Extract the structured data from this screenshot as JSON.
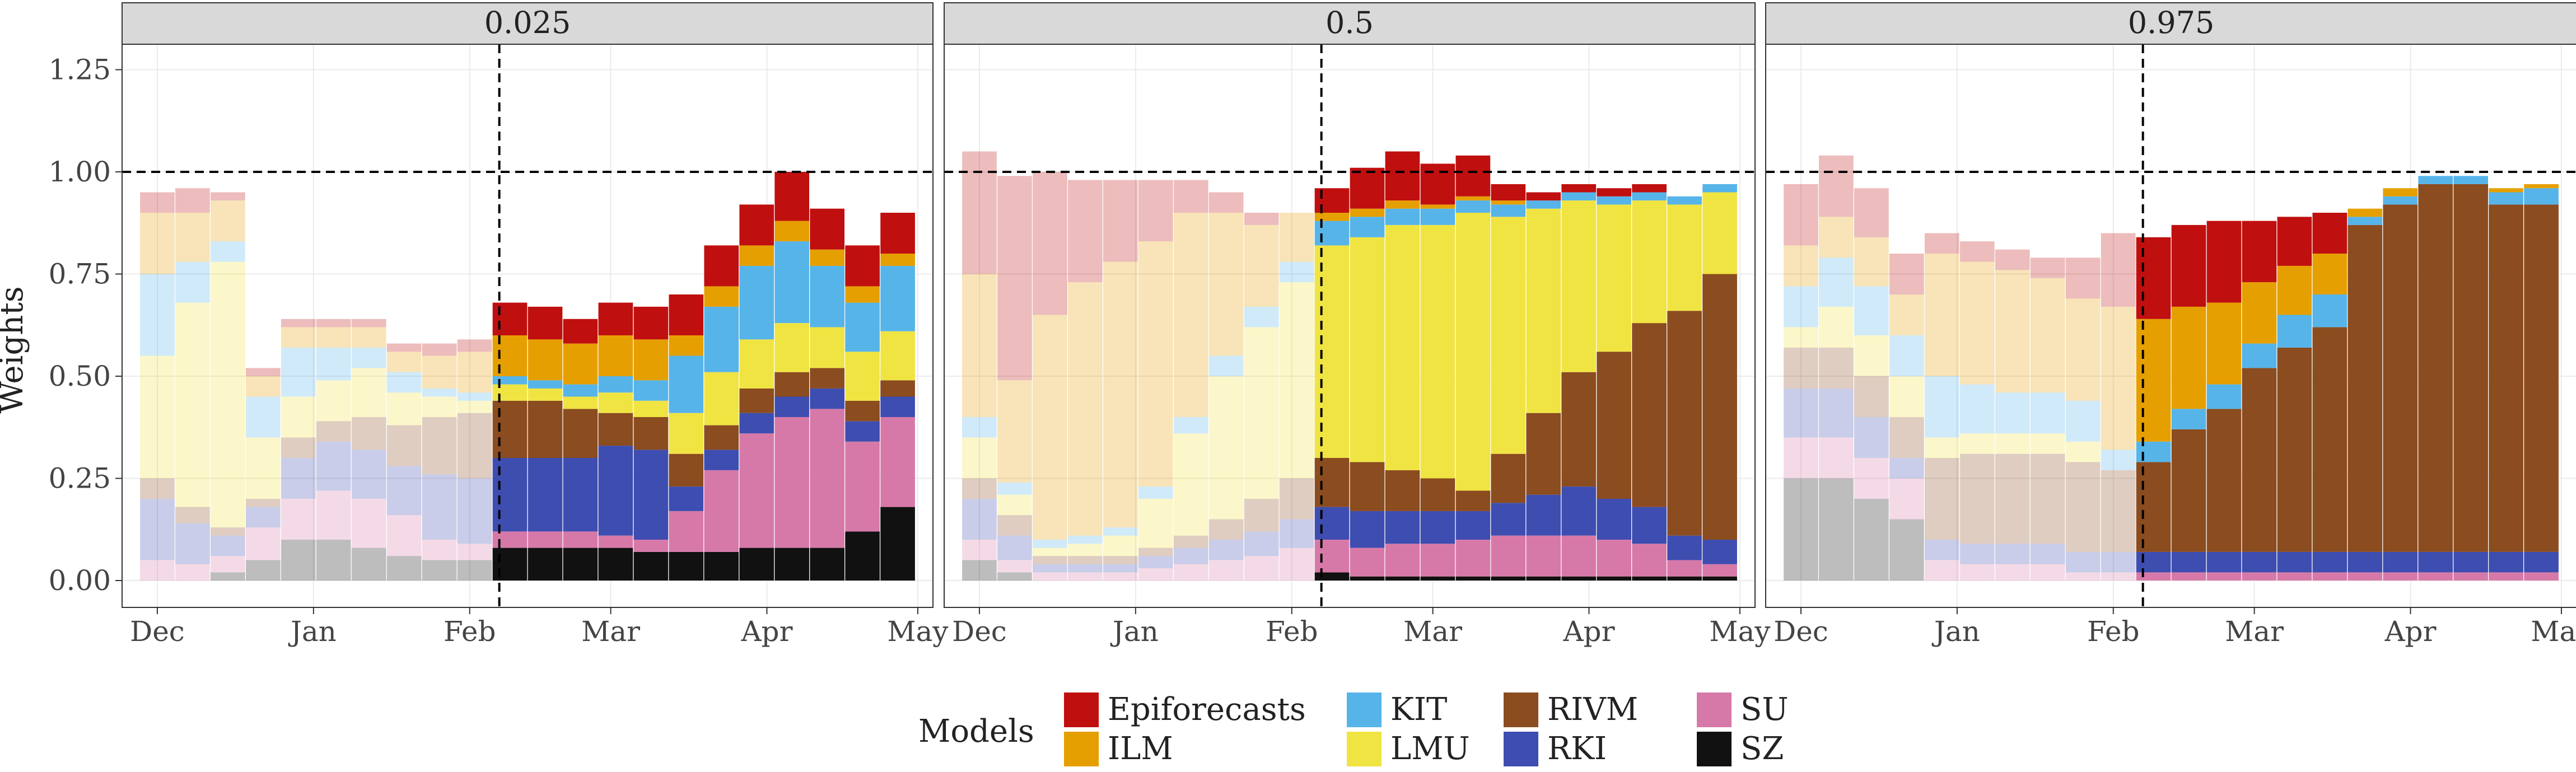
{
  "chart_data": {
    "type": "bar",
    "stacked": true,
    "ylabel": "Weights",
    "xlabel": "",
    "ylim": [
      0,
      1.3
    ],
    "y_ticks": [
      "0.00",
      "0.25",
      "0.50",
      "0.75",
      "1.00",
      "1.25"
    ],
    "x_ticks": [
      "Dec",
      "Jan",
      "Feb",
      "Mar",
      "Apr",
      "May"
    ],
    "x_domain_weeks": [
      -1,
      22
    ],
    "x_tick_positions_weeks": [
      0,
      4.43,
      8.86,
      12.86,
      17.29,
      21.57
    ],
    "grid": true,
    "reference_line_y": 1.0,
    "legend": {
      "title": "Models",
      "placement": "bottom",
      "entries": [
        "Epiforecasts",
        "ILM",
        "KIT",
        "LMU",
        "RIVM",
        "RKI",
        "SU",
        "SZ"
      ]
    },
    "colors": {
      "Epiforecasts": "#c00f0f",
      "ILM": "#e69f00",
      "KIT": "#56b4e9",
      "LMU": "#f0e442",
      "RIVM": "#8b4c1f",
      "RKI": "#3e4db0",
      "SU": "#d779a8",
      "SZ": "#111111"
    },
    "panels": [
      {
        "title": "0.025",
        "evaluation_start_week": 9.7,
        "series_weeks": [
          0,
          1,
          2,
          3,
          4,
          5,
          6,
          7,
          8,
          9,
          10,
          11,
          12,
          13,
          14,
          15,
          16,
          17,
          18,
          19,
          20,
          21
        ],
        "series": [
          {
            "name": "SZ",
            "values": [
              0.0,
              0.0,
              0.02,
              0.05,
              0.1,
              0.1,
              0.08,
              0.06,
              0.05,
              0.05,
              0.08,
              0.08,
              0.08,
              0.08,
              0.07,
              0.07,
              0.07,
              0.08,
              0.08,
              0.08,
              0.12,
              0.18
            ]
          },
          {
            "name": "SU",
            "values": [
              0.05,
              0.04,
              0.04,
              0.08,
              0.1,
              0.12,
              0.12,
              0.1,
              0.05,
              0.04,
              0.04,
              0.04,
              0.04,
              0.03,
              0.03,
              0.1,
              0.2,
              0.28,
              0.32,
              0.34,
              0.22,
              0.22
            ]
          },
          {
            "name": "RKI",
            "values": [
              0.15,
              0.1,
              0.05,
              0.05,
              0.1,
              0.12,
              0.12,
              0.12,
              0.16,
              0.16,
              0.18,
              0.18,
              0.18,
              0.22,
              0.22,
              0.06,
              0.05,
              0.05,
              0.05,
              0.05,
              0.05,
              0.05
            ]
          },
          {
            "name": "RIVM",
            "values": [
              0.05,
              0.04,
              0.02,
              0.02,
              0.05,
              0.05,
              0.08,
              0.1,
              0.14,
              0.16,
              0.14,
              0.14,
              0.12,
              0.08,
              0.08,
              0.08,
              0.06,
              0.06,
              0.06,
              0.05,
              0.05,
              0.04
            ]
          },
          {
            "name": "LMU",
            "values": [
              0.3,
              0.5,
              0.65,
              0.15,
              0.1,
              0.1,
              0.12,
              0.08,
              0.05,
              0.03,
              0.04,
              0.03,
              0.03,
              0.05,
              0.04,
              0.1,
              0.13,
              0.12,
              0.12,
              0.1,
              0.12,
              0.12
            ]
          },
          {
            "name": "KIT",
            "values": [
              0.2,
              0.1,
              0.05,
              0.1,
              0.12,
              0.08,
              0.05,
              0.05,
              0.02,
              0.02,
              0.02,
              0.02,
              0.03,
              0.04,
              0.05,
              0.14,
              0.16,
              0.18,
              0.2,
              0.15,
              0.12,
              0.16
            ]
          },
          {
            "name": "ILM",
            "values": [
              0.15,
              0.12,
              0.1,
              0.05,
              0.05,
              0.05,
              0.05,
              0.05,
              0.08,
              0.1,
              0.1,
              0.1,
              0.1,
              0.1,
              0.1,
              0.05,
              0.05,
              0.05,
              0.05,
              0.04,
              0.04,
              0.03
            ]
          },
          {
            "name": "Epiforecasts",
            "values": [
              0.05,
              0.06,
              0.02,
              0.02,
              0.02,
              0.02,
              0.02,
              0.02,
              0.03,
              0.03,
              0.08,
              0.08,
              0.06,
              0.08,
              0.08,
              0.1,
              0.1,
              0.1,
              0.12,
              0.1,
              0.1,
              0.1
            ]
          }
        ]
      },
      {
        "title": "0.5",
        "evaluation_start_week": 9.7,
        "series_weeks": [
          0,
          1,
          2,
          3,
          4,
          5,
          6,
          7,
          8,
          9,
          10,
          11,
          12,
          13,
          14,
          15,
          16,
          17,
          18,
          19,
          20,
          21
        ],
        "series": [
          {
            "name": "SZ",
            "values": [
              0.05,
              0.02,
              0.0,
              0.0,
              0.0,
              0.0,
              0.0,
              0.0,
              0.0,
              0.0,
              0.02,
              0.01,
              0.01,
              0.01,
              0.01,
              0.01,
              0.01,
              0.01,
              0.01,
              0.01,
              0.01,
              0.01
            ]
          },
          {
            "name": "SU",
            "values": [
              0.05,
              0.03,
              0.02,
              0.02,
              0.02,
              0.03,
              0.04,
              0.05,
              0.06,
              0.08,
              0.08,
              0.07,
              0.08,
              0.08,
              0.09,
              0.1,
              0.1,
              0.1,
              0.09,
              0.08,
              0.04,
              0.03
            ]
          },
          {
            "name": "RKI",
            "values": [
              0.1,
              0.06,
              0.02,
              0.02,
              0.02,
              0.03,
              0.04,
              0.05,
              0.06,
              0.07,
              0.08,
              0.09,
              0.08,
              0.08,
              0.07,
              0.08,
              0.1,
              0.12,
              0.1,
              0.09,
              0.06,
              0.06
            ]
          },
          {
            "name": "RIVM",
            "values": [
              0.05,
              0.05,
              0.02,
              0.02,
              0.02,
              0.02,
              0.03,
              0.05,
              0.08,
              0.1,
              0.12,
              0.12,
              0.1,
              0.08,
              0.05,
              0.12,
              0.2,
              0.28,
              0.36,
              0.45,
              0.55,
              0.65
            ]
          },
          {
            "name": "LMU",
            "values": [
              0.1,
              0.05,
              0.02,
              0.03,
              0.05,
              0.12,
              0.25,
              0.35,
              0.42,
              0.48,
              0.52,
              0.55,
              0.6,
              0.62,
              0.68,
              0.58,
              0.5,
              0.42,
              0.36,
              0.3,
              0.26,
              0.2
            ]
          },
          {
            "name": "KIT",
            "values": [
              0.05,
              0.03,
              0.02,
              0.02,
              0.02,
              0.03,
              0.04,
              0.05,
              0.05,
              0.05,
              0.06,
              0.05,
              0.04,
              0.04,
              0.03,
              0.03,
              0.02,
              0.02,
              0.02,
              0.02,
              0.02,
              0.02
            ]
          },
          {
            "name": "ILM",
            "values": [
              0.35,
              0.25,
              0.55,
              0.62,
              0.65,
              0.6,
              0.5,
              0.35,
              0.2,
              0.12,
              0.02,
              0.02,
              0.02,
              0.01,
              0.01,
              0.01,
              0.0,
              0.0,
              0.0,
              0.0,
              0.0,
              0.0
            ]
          },
          {
            "name": "Epiforecasts",
            "values": [
              0.3,
              0.5,
              0.35,
              0.25,
              0.2,
              0.15,
              0.08,
              0.05,
              0.03,
              0.0,
              0.06,
              0.1,
              0.12,
              0.1,
              0.1,
              0.04,
              0.02,
              0.02,
              0.02,
              0.02,
              0.0,
              0.0
            ]
          }
        ]
      },
      {
        "title": "0.975",
        "evaluation_start_week": 9.7,
        "series_weeks": [
          0,
          1,
          2,
          3,
          4,
          5,
          6,
          7,
          8,
          9,
          10,
          11,
          12,
          13,
          14,
          15,
          16,
          17,
          18,
          19,
          20,
          21
        ],
        "series": [
          {
            "name": "SZ",
            "values": [
              0.25,
              0.25,
              0.2,
              0.15,
              0.0,
              0.0,
              0.0,
              0.0,
              0.0,
              0.0,
              0.0,
              0.0,
              0.0,
              0.0,
              0.0,
              0.0,
              0.0,
              0.0,
              0.0,
              0.0,
              0.0,
              0.0
            ]
          },
          {
            "name": "SU",
            "values": [
              0.1,
              0.1,
              0.1,
              0.1,
              0.05,
              0.04,
              0.04,
              0.04,
              0.02,
              0.02,
              0.02,
              0.02,
              0.02,
              0.02,
              0.02,
              0.02,
              0.02,
              0.02,
              0.02,
              0.02,
              0.02,
              0.02
            ]
          },
          {
            "name": "RKI",
            "values": [
              0.12,
              0.12,
              0.1,
              0.05,
              0.05,
              0.05,
              0.05,
              0.05,
              0.05,
              0.05,
              0.05,
              0.05,
              0.05,
              0.05,
              0.05,
              0.05,
              0.05,
              0.05,
              0.05,
              0.05,
              0.05,
              0.05
            ]
          },
          {
            "name": "RIVM",
            "values": [
              0.1,
              0.1,
              0.1,
              0.1,
              0.2,
              0.22,
              0.22,
              0.22,
              0.22,
              0.2,
              0.22,
              0.3,
              0.35,
              0.45,
              0.5,
              0.55,
              0.8,
              0.85,
              0.9,
              0.9,
              0.85,
              0.85
            ]
          },
          {
            "name": "LMU",
            "values": [
              0.05,
              0.1,
              0.1,
              0.1,
              0.05,
              0.05,
              0.05,
              0.05,
              0.05,
              0.0,
              0.0,
              0.0,
              0.0,
              0.0,
              0.0,
              0.0,
              0.0,
              0.0,
              0.0,
              0.0,
              0.0,
              0.0
            ]
          },
          {
            "name": "KIT",
            "values": [
              0.1,
              0.12,
              0.12,
              0.1,
              0.15,
              0.12,
              0.1,
              0.1,
              0.1,
              0.05,
              0.05,
              0.05,
              0.06,
              0.06,
              0.08,
              0.08,
              0.02,
              0.02,
              0.02,
              0.02,
              0.03,
              0.04
            ]
          },
          {
            "name": "ILM",
            "values": [
              0.1,
              0.1,
              0.12,
              0.1,
              0.3,
              0.3,
              0.3,
              0.28,
              0.25,
              0.35,
              0.3,
              0.25,
              0.2,
              0.15,
              0.12,
              0.1,
              0.02,
              0.02,
              0.0,
              0.0,
              0.01,
              0.01
            ]
          },
          {
            "name": "Epiforecasts",
            "values": [
              0.15,
              0.15,
              0.12,
              0.1,
              0.05,
              0.05,
              0.05,
              0.05,
              0.1,
              0.18,
              0.2,
              0.2,
              0.2,
              0.15,
              0.12,
              0.1,
              0.0,
              0.0,
              0.0,
              0.0,
              0.0,
              0.0
            ]
          }
        ]
      }
    ]
  }
}
